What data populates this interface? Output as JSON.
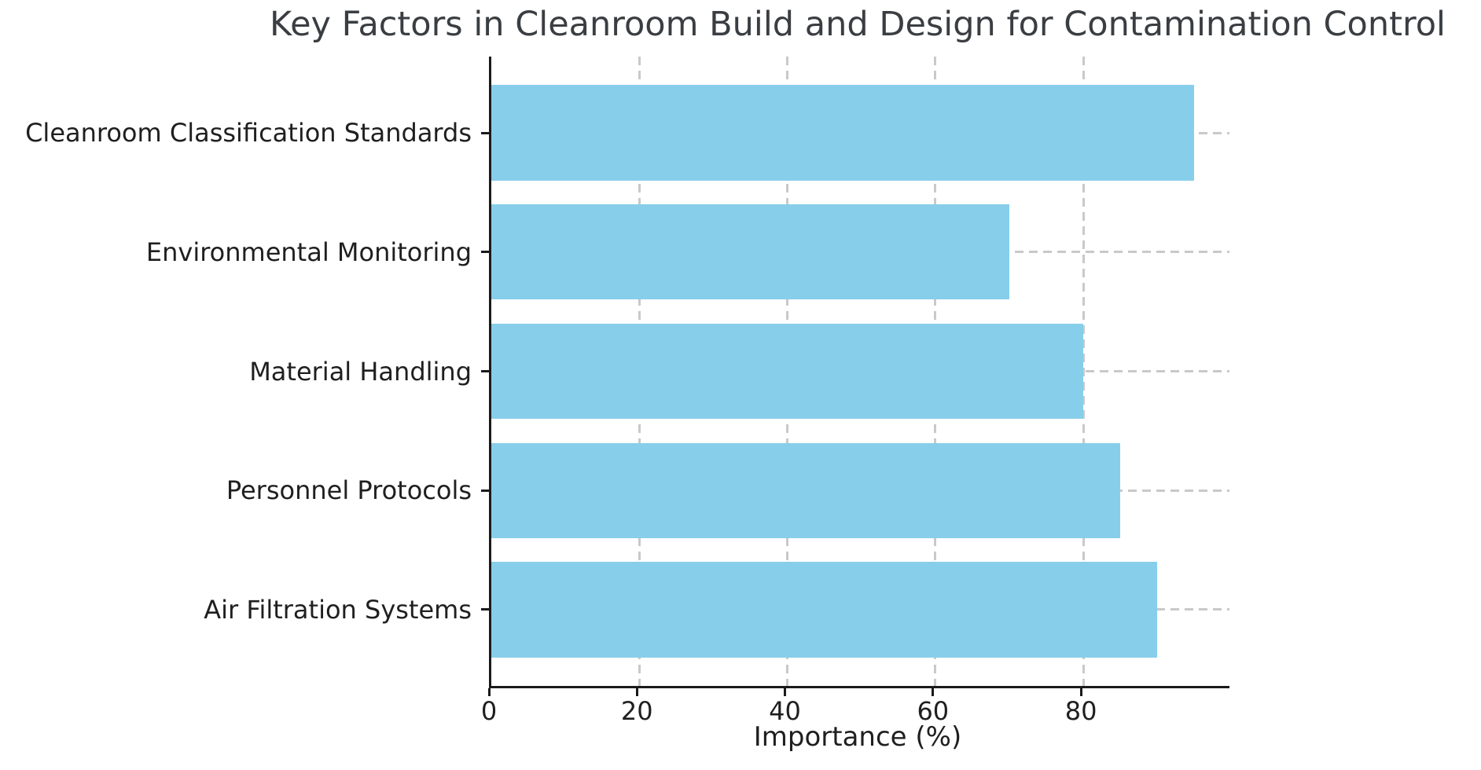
{
  "chart_data": {
    "type": "bar",
    "orientation": "horizontal",
    "title": "Key Factors in Cleanroom Build and Design for Contamination Control",
    "xlabel": "Importance (%)",
    "ylabel": "",
    "categories": [
      "Cleanroom Classification Standards",
      "Environmental Monitoring",
      "Material Handling",
      "Personnel Protocols",
      "Air Filtration Systems"
    ],
    "values": [
      95,
      70,
      80,
      85,
      90
    ],
    "xticks": [
      0,
      20,
      40,
      60,
      80
    ],
    "xlim": [
      0,
      99.75
    ],
    "bar_height_fraction": 0.8,
    "grid": "dashed",
    "legend_position": "none",
    "colors": {
      "bar_fill": "#87CEEB",
      "grid_line": "#c9c9c9",
      "spine": "#1a1a1a",
      "title_text": "#3a3e42",
      "axis_text": "#1f1f1f",
      "background": "#ffffff"
    }
  }
}
